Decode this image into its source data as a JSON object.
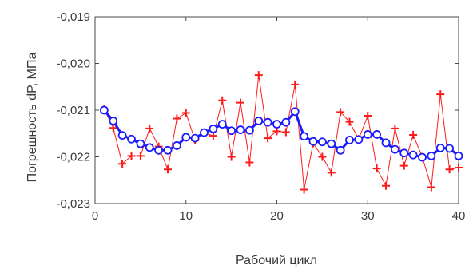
{
  "chart_data": {
    "type": "line",
    "title": "",
    "xlabel": "Рабочий цикл",
    "ylabel": "Погрешность dP, МПа",
    "xlim": [
      0,
      40
    ],
    "ylim": [
      -0.023,
      -0.019
    ],
    "xticks": [
      0,
      10,
      20,
      30,
      40
    ],
    "xtick_labels": [
      "0",
      "10",
      "20",
      "30",
      "40"
    ],
    "yticks": [
      -0.019,
      -0.02,
      -0.021,
      -0.022,
      -0.023
    ],
    "ytick_labels": [
      "-0,019",
      "-0,020",
      "-0,021",
      "-0,022",
      "-0,023"
    ],
    "grid": false,
    "legend": false,
    "series": [
      {
        "color": "#ff1a1a",
        "marker": "plus",
        "x": [
          1,
          2,
          3,
          4,
          5,
          6,
          7,
          8,
          9,
          10,
          11,
          12,
          13,
          14,
          15,
          16,
          17,
          18,
          19,
          20,
          21,
          22,
          23,
          24,
          25,
          26,
          27,
          28,
          29,
          30,
          31,
          32,
          33,
          34,
          35,
          36,
          37,
          38,
          39,
          40
        ],
        "y": [
          -0.02098,
          -0.02138,
          -0.02215,
          -0.02198,
          -0.02198,
          -0.02139,
          -0.02178,
          -0.02227,
          -0.02118,
          -0.02106,
          -0.02165,
          -0.02148,
          -0.02155,
          -0.02079,
          -0.022,
          -0.02084,
          -0.02212,
          -0.02025,
          -0.0216,
          -0.02145,
          -0.02147,
          -0.02045,
          -0.0227,
          -0.02171,
          -0.022,
          -0.02234,
          -0.02104,
          -0.02125,
          -0.02162,
          -0.02112,
          -0.02225,
          -0.02262,
          -0.02139,
          -0.02219,
          -0.02153,
          -0.022,
          -0.02265,
          -0.02066,
          -0.02227,
          -0.02223
        ]
      },
      {
        "color": "#1a1aff",
        "marker": "circle",
        "x": [
          1,
          2,
          3,
          4,
          5,
          6,
          7,
          8,
          9,
          10,
          11,
          12,
          13,
          14,
          15,
          16,
          17,
          18,
          19,
          20,
          21,
          22,
          23,
          24,
          25,
          26,
          27,
          28,
          29,
          30,
          31,
          32,
          33,
          34,
          35,
          36,
          37,
          38,
          39,
          40
        ],
        "y": [
          -0.021,
          -0.02123,
          -0.02154,
          -0.02162,
          -0.02172,
          -0.0218,
          -0.02186,
          -0.02186,
          -0.02176,
          -0.02158,
          -0.0216,
          -0.02148,
          -0.0214,
          -0.0213,
          -0.02144,
          -0.02142,
          -0.02143,
          -0.02123,
          -0.02126,
          -0.0213,
          -0.02126,
          -0.02103,
          -0.02156,
          -0.02167,
          -0.02168,
          -0.02172,
          -0.02186,
          -0.02164,
          -0.02163,
          -0.02152,
          -0.02152,
          -0.0217,
          -0.02184,
          -0.02192,
          -0.02196,
          -0.02201,
          -0.02198,
          -0.02181,
          -0.02182,
          -0.02198
        ]
      }
    ]
  }
}
